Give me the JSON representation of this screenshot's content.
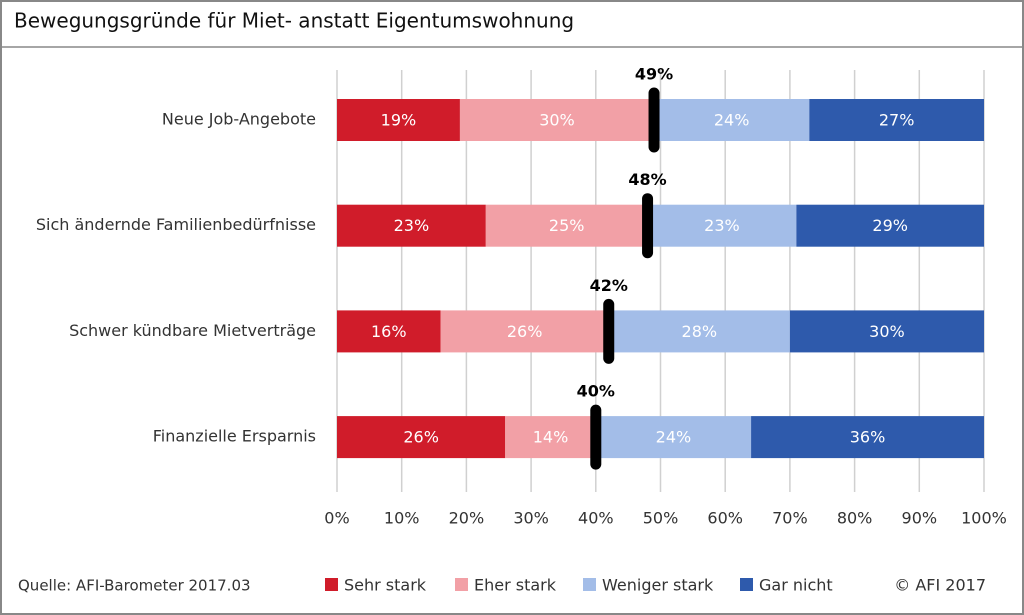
{
  "chart_data": {
    "type": "stacked_barh",
    "title": "Bewegungsgründe für Miet- anstatt Eigentumswohnung",
    "source": "Quelle: AFI-Barometer 2017.03",
    "copyright": "© AFI 2017",
    "categories": [
      "Neue Job-Angebote",
      "Sich ändernde Familienbedürfnisse",
      "Schwer kündbare Mietverträge",
      "Finanzielle Ersparnis"
    ],
    "series": [
      {
        "name": "Sehr stark",
        "color": "#d01c2a",
        "values": [
          19,
          23,
          16,
          26
        ],
        "value_labels": [
          "19%",
          "23%",
          "16%",
          "26%"
        ]
      },
      {
        "name": "Eher stark",
        "color": "#f2a0a6",
        "values": [
          30,
          25,
          26,
          14
        ],
        "value_labels": [
          "30%",
          "25%",
          "26%",
          "14%"
        ]
      },
      {
        "name": "Weniger stark",
        "color": "#a3bde8",
        "values": [
          24,
          23,
          28,
          24
        ],
        "value_labels": [
          "24%",
          "23%",
          "28%",
          "24%"
        ]
      },
      {
        "name": "Gar nicht",
        "color": "#2e5aac",
        "values": [
          27,
          29,
          30,
          36
        ],
        "value_labels": [
          "27%",
          "29%",
          "30%",
          "36%"
        ]
      }
    ],
    "markers": {
      "color": "#000000",
      "values": [
        49,
        48,
        42,
        40
      ],
      "value_labels": [
        "49%",
        "48%",
        "42%",
        "40%"
      ]
    },
    "xlim": [
      0,
      100
    ],
    "xticks": [
      {
        "value": 0,
        "label": "0%"
      },
      {
        "value": 10,
        "label": "10%"
      },
      {
        "value": 20,
        "label": "20%"
      },
      {
        "value": 30,
        "label": "30%"
      },
      {
        "value": 40,
        "label": "40%"
      },
      {
        "value": 50,
        "label": "50%"
      },
      {
        "value": 60,
        "label": "60%"
      },
      {
        "value": 70,
        "label": "70%"
      },
      {
        "value": 80,
        "label": "80%"
      },
      {
        "value": 90,
        "label": "90%"
      },
      {
        "value": 100,
        "label": "100%"
      }
    ],
    "grid": true,
    "legend": "bottom"
  }
}
